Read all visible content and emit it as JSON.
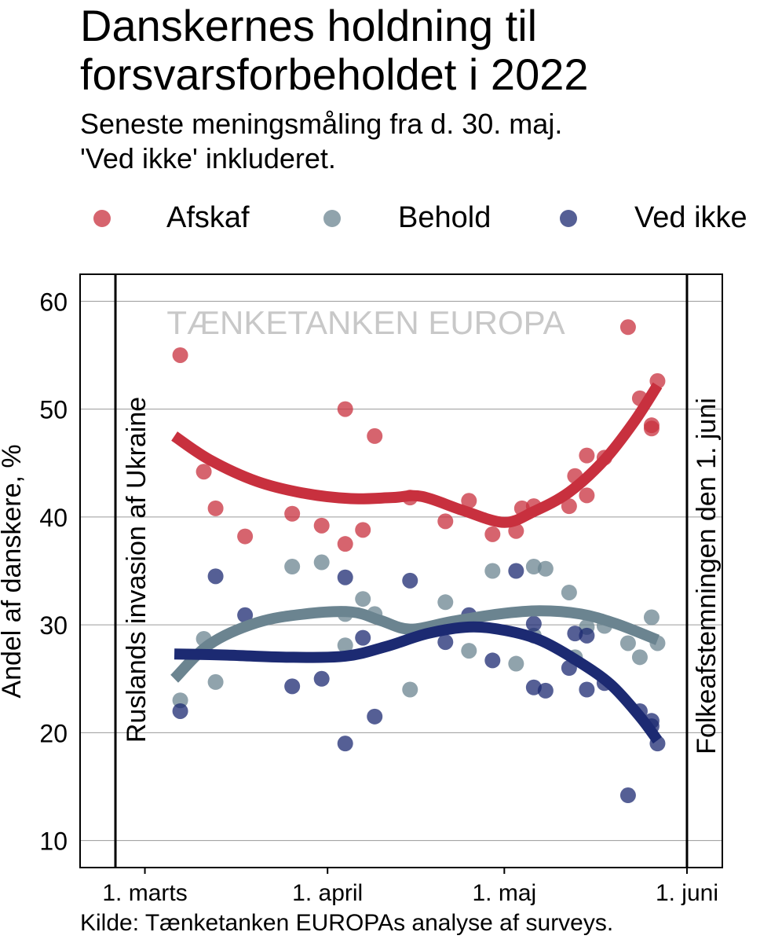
{
  "title": "Danskernes holdning til forsvarsforbeholdet i 2022",
  "subtitle_line1": "Seneste meningsmåling fra d. 30. maj.",
  "subtitle_line2": "'Ved ikke' inkluderet.",
  "source": "Kilde: Tænketanken EUROPAs analyse af surveys.",
  "watermark": "TÆNKETANKEN EUROPA",
  "colors": {
    "afskaf": "#c8303e",
    "behold": "#6b8490",
    "ved_ikke": "#1c2a72"
  },
  "chart_data": {
    "type": "scatter",
    "title": "Danskernes holdning til forsvarsforbeholdet i 2022",
    "ylabel": "Andel af danskere, %",
    "xlabel": "",
    "ylim": [
      7.5,
      62.5
    ],
    "yticks": [
      10,
      20,
      30,
      40,
      50,
      60
    ],
    "xlim": [
      "2022-02-18",
      "2022-06-07"
    ],
    "xticks": [
      {
        "date": "2022-03-01",
        "label": "1. marts"
      },
      {
        "date": "2022-04-01",
        "label": "1. april"
      },
      {
        "date": "2022-05-01",
        "label": "1. maj"
      },
      {
        "date": "2022-06-01",
        "label": "1. juni"
      }
    ],
    "grid": true,
    "legend_position": "top",
    "vlines": [
      {
        "date": "2022-02-24",
        "label": "Ruslands invasion af Ukraine"
      },
      {
        "date": "2022-06-01",
        "label": "Folkeafstemningen den 1. juni"
      }
    ],
    "series": [
      {
        "name": "Afskaf",
        "points": [
          [
            "2022-03-07",
            55.0
          ],
          [
            "2022-03-11",
            44.2
          ],
          [
            "2022-03-13",
            40.8
          ],
          [
            "2022-03-18",
            38.2
          ],
          [
            "2022-03-26",
            40.3
          ],
          [
            "2022-03-31",
            39.2
          ],
          [
            "2022-04-04",
            37.5
          ],
          [
            "2022-04-04",
            50.0
          ],
          [
            "2022-04-07",
            38.8
          ],
          [
            "2022-04-09",
            47.5
          ],
          [
            "2022-04-15",
            41.8
          ],
          [
            "2022-04-21",
            39.6
          ],
          [
            "2022-04-25",
            41.5
          ],
          [
            "2022-04-29",
            38.4
          ],
          [
            "2022-05-03",
            38.7
          ],
          [
            "2022-05-04",
            40.8
          ],
          [
            "2022-05-06",
            41.0
          ],
          [
            "2022-05-12",
            41.0
          ],
          [
            "2022-05-13",
            43.8
          ],
          [
            "2022-05-15",
            45.7
          ],
          [
            "2022-05-15",
            42.0
          ],
          [
            "2022-05-18",
            45.5
          ],
          [
            "2022-05-22",
            57.6
          ],
          [
            "2022-05-24",
            51.0
          ],
          [
            "2022-05-26",
            48.5
          ],
          [
            "2022-05-26",
            48.2
          ],
          [
            "2022-05-27",
            52.6
          ]
        ],
        "trend": [
          [
            "2022-03-06",
            47.5
          ],
          [
            "2022-03-12",
            45.3
          ],
          [
            "2022-03-20",
            43.3
          ],
          [
            "2022-03-28",
            42.2
          ],
          [
            "2022-04-05",
            41.7
          ],
          [
            "2022-04-12",
            41.8
          ],
          [
            "2022-04-17",
            41.9
          ],
          [
            "2022-04-24",
            40.6
          ],
          [
            "2022-05-01",
            39.5
          ],
          [
            "2022-05-06",
            40.5
          ],
          [
            "2022-05-12",
            42.3
          ],
          [
            "2022-05-18",
            45.3
          ],
          [
            "2022-05-23",
            48.8
          ],
          [
            "2022-05-27",
            52.2
          ]
        ]
      },
      {
        "name": "Behold",
        "points": [
          [
            "2022-03-07",
            23.0
          ],
          [
            "2022-03-11",
            28.7
          ],
          [
            "2022-03-13",
            24.7
          ],
          [
            "2022-03-26",
            35.4
          ],
          [
            "2022-03-31",
            35.8
          ],
          [
            "2022-04-04",
            31.0
          ],
          [
            "2022-04-04",
            28.1
          ],
          [
            "2022-04-07",
            32.4
          ],
          [
            "2022-04-09",
            31.0
          ],
          [
            "2022-04-15",
            24.0
          ],
          [
            "2022-04-21",
            32.1
          ],
          [
            "2022-04-25",
            27.6
          ],
          [
            "2022-04-29",
            35.0
          ],
          [
            "2022-05-03",
            26.4
          ],
          [
            "2022-05-06",
            35.4
          ],
          [
            "2022-05-06",
            29.0
          ],
          [
            "2022-05-08",
            35.2
          ],
          [
            "2022-05-12",
            33.0
          ],
          [
            "2022-05-13",
            27.0
          ],
          [
            "2022-05-15",
            29.8
          ],
          [
            "2022-05-18",
            29.9
          ],
          [
            "2022-05-22",
            28.3
          ],
          [
            "2022-05-24",
            27.0
          ],
          [
            "2022-05-26",
            30.7
          ],
          [
            "2022-05-27",
            28.3
          ]
        ],
        "trend": [
          [
            "2022-03-06",
            25.0
          ],
          [
            "2022-03-12",
            28.2
          ],
          [
            "2022-03-20",
            30.2
          ],
          [
            "2022-03-28",
            31.0
          ],
          [
            "2022-04-05",
            31.2
          ],
          [
            "2022-04-10",
            30.4
          ],
          [
            "2022-04-15",
            29.6
          ],
          [
            "2022-04-22",
            30.3
          ],
          [
            "2022-04-30",
            31.0
          ],
          [
            "2022-05-07",
            31.3
          ],
          [
            "2022-05-14",
            31.0
          ],
          [
            "2022-05-20",
            30.1
          ],
          [
            "2022-05-27",
            28.6
          ]
        ]
      },
      {
        "name": "Ved ikke",
        "points": [
          [
            "2022-03-07",
            22.0
          ],
          [
            "2022-03-13",
            34.5
          ],
          [
            "2022-03-18",
            30.9
          ],
          [
            "2022-03-26",
            24.3
          ],
          [
            "2022-03-31",
            25.0
          ],
          [
            "2022-04-04",
            19.0
          ],
          [
            "2022-04-04",
            34.4
          ],
          [
            "2022-04-07",
            28.8
          ],
          [
            "2022-04-09",
            21.5
          ],
          [
            "2022-04-15",
            34.1
          ],
          [
            "2022-04-21",
            28.4
          ],
          [
            "2022-04-25",
            30.9
          ],
          [
            "2022-04-29",
            26.7
          ],
          [
            "2022-05-03",
            35.0
          ],
          [
            "2022-05-06",
            30.1
          ],
          [
            "2022-05-06",
            24.2
          ],
          [
            "2022-05-08",
            23.9
          ],
          [
            "2022-05-12",
            26.0
          ],
          [
            "2022-05-13",
            29.2
          ],
          [
            "2022-05-15",
            24.0
          ],
          [
            "2022-05-15",
            29.0
          ],
          [
            "2022-05-18",
            24.6
          ],
          [
            "2022-05-22",
            14.2
          ],
          [
            "2022-05-24",
            22.0
          ],
          [
            "2022-05-26",
            21.1
          ],
          [
            "2022-05-26",
            20.6
          ],
          [
            "2022-05-27",
            19.0
          ]
        ],
        "trend": [
          [
            "2022-03-06",
            27.3
          ],
          [
            "2022-03-15",
            27.2
          ],
          [
            "2022-03-25",
            27.0
          ],
          [
            "2022-04-04",
            27.1
          ],
          [
            "2022-04-11",
            28.0
          ],
          [
            "2022-04-18",
            29.2
          ],
          [
            "2022-04-25",
            29.8
          ],
          [
            "2022-05-01",
            29.5
          ],
          [
            "2022-05-07",
            28.6
          ],
          [
            "2022-05-13",
            26.8
          ],
          [
            "2022-05-19",
            24.5
          ],
          [
            "2022-05-24",
            21.5
          ],
          [
            "2022-05-27",
            19.3
          ]
        ]
      }
    ]
  }
}
